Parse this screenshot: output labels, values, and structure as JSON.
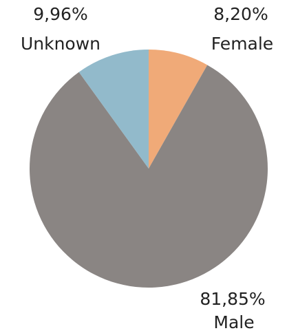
{
  "chart_data": {
    "type": "pie",
    "categories": [
      "Female",
      "Male",
      "Unknown"
    ],
    "values": [
      8.2,
      81.85,
      9.96
    ],
    "value_labels": [
      "8,20%",
      "81,85%",
      "9,96%"
    ],
    "colors": [
      "#f0aa78",
      "#8a8583",
      "#92bacb"
    ]
  }
}
